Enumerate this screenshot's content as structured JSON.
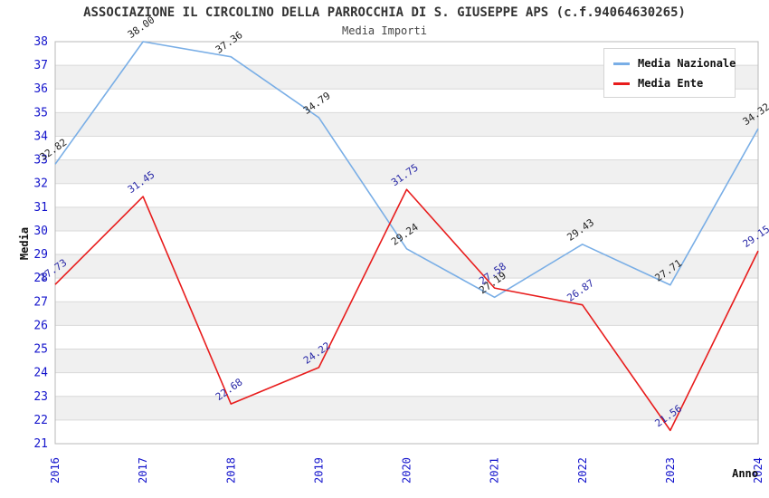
{
  "title": "ASSOCIAZIONE IL CIRCOLINO DELLA PARROCCHIA DI S. GIUSEPPE APS (c.f.94064630265)",
  "subtitle": "Media Importi",
  "chart_data": {
    "type": "line",
    "categories": [
      "2016",
      "2017",
      "2018",
      "2019",
      "2020",
      "2021",
      "2022",
      "2023",
      "2024"
    ],
    "series": [
      {
        "name": "Media Nazionale",
        "color": "#79aee6",
        "label_color": "#222222",
        "values": [
          32.82,
          38.0,
          37.36,
          34.79,
          29.24,
          27.19,
          29.43,
          27.71,
          34.32
        ]
      },
      {
        "name": "Media Ente",
        "color": "#e81c1c",
        "label_color": "#2626a6",
        "values": [
          27.73,
          31.45,
          22.68,
          24.22,
          31.75,
          27.58,
          26.87,
          21.56,
          29.15
        ]
      }
    ],
    "xlabel": "Anno",
    "ylabel": "Media",
    "ylim": [
      21,
      38
    ],
    "y_ticks": [
      21,
      22,
      23,
      24,
      25,
      26,
      27,
      28,
      29,
      30,
      31,
      32,
      33,
      34,
      35,
      36,
      37,
      38
    ],
    "grid": true,
    "legend_position": "top-right",
    "band_colors": [
      "#ffffff",
      "#f0f0f0"
    ],
    "gridline_color": "#d9d9d9",
    "axis_border_color": "#b8b8b8",
    "tick_label_color": "#1414cc"
  }
}
